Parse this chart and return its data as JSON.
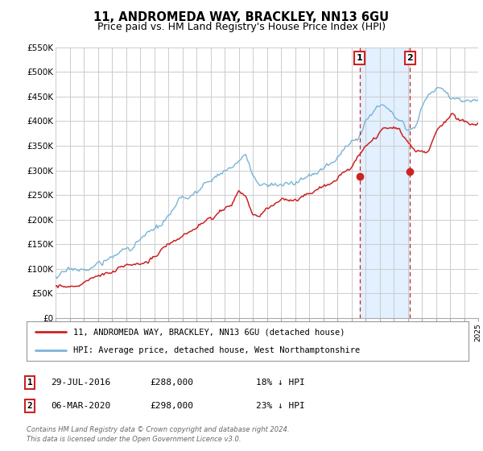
{
  "title": "11, ANDROMEDA WAY, BRACKLEY, NN13 6GU",
  "subtitle": "Price paid vs. HM Land Registry's House Price Index (HPI)",
  "ylim": [
    0,
    550000
  ],
  "yticks": [
    0,
    50000,
    100000,
    150000,
    200000,
    250000,
    300000,
    350000,
    400000,
    450000,
    500000,
    550000
  ],
  "ytick_labels": [
    "£0",
    "£50K",
    "£100K",
    "£150K",
    "£200K",
    "£250K",
    "£300K",
    "£350K",
    "£400K",
    "£450K",
    "£500K",
    "£550K"
  ],
  "hpi_color": "#7ab4d8",
  "price_color": "#cc2222",
  "marker1_date": 2016.58,
  "marker1_price": 288000,
  "marker2_date": 2020.17,
  "marker2_price": 298000,
  "vline_color": "#cc2222",
  "shade_color": "#ddeeff",
  "legend_entry1": "11, ANDROMEDA WAY, BRACKLEY, NN13 6GU (detached house)",
  "legend_entry2": "HPI: Average price, detached house, West Northamptonshire",
  "table_row1": [
    "1",
    "29-JUL-2016",
    "£288,000",
    "18% ↓ HPI"
  ],
  "table_row2": [
    "2",
    "06-MAR-2020",
    "£298,000",
    "23% ↓ HPI"
  ],
  "footnote1": "Contains HM Land Registry data © Crown copyright and database right 2024.",
  "footnote2": "This data is licensed under the Open Government Licence v3.0.",
  "bg_color": "#ffffff",
  "grid_color": "#cccccc",
  "title_fontsize": 10.5,
  "subtitle_fontsize": 9
}
